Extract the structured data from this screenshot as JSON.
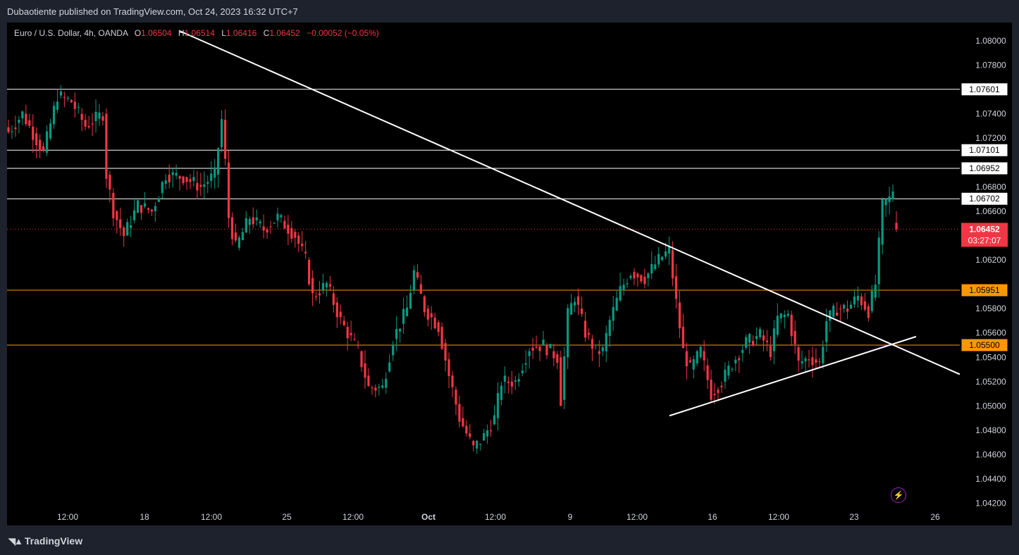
{
  "header": {
    "published": "Dubaotiente published on TradingView.com, Oct 24, 2023 16:32 UTC+7"
  },
  "legend": {
    "symbol": "Euro / U.S. Dollar, 4h, OANDA",
    "o_label": "O",
    "o": "1.06504",
    "h_label": "H",
    "h": "1.06514",
    "l_label": "L",
    "l": "1.06416",
    "c_label": "C",
    "c": "1.06452",
    "change": "−0.00052 (−0.05%)"
  },
  "footer": {
    "brand": "TradingView"
  },
  "icons": {
    "brand": "tradingview-logo-icon",
    "alert": "lightning-icon"
  },
  "colors": {
    "up": "#089981",
    "down": "#f23645",
    "resistance": "#ffffff",
    "support": "#ff9800",
    "background": "#000000",
    "axis_text": "#d1d4dc"
  },
  "chart_data": {
    "type": "candlestick",
    "title": "Euro / U.S. Dollar, 4h, OANDA",
    "y_ticks": [
      "1.08000",
      "1.07800",
      "1.07400",
      "1.07200",
      "1.06800",
      "1.06600",
      "1.06200",
      "1.05800",
      "1.05600",
      "1.05400",
      "1.05200",
      "1.05000",
      "1.04800",
      "1.04600",
      "1.04400",
      "1.04200"
    ],
    "x_ticks": [
      "12:00",
      "18",
      "12:00",
      "25",
      "12:00",
      "Oct",
      "12:00",
      "9",
      "12:00",
      "16",
      "12:00",
      "23",
      "26"
    ],
    "ylim": [
      1.041,
      1.0808
    ],
    "horizontal_levels": [
      {
        "label": "1.07601",
        "value": 1.07601,
        "color": "#ffffff"
      },
      {
        "label": "1.07101",
        "value": 1.07101,
        "color": "#ffffff"
      },
      {
        "label": "1.06952",
        "value": 1.06952,
        "color": "#ffffff"
      },
      {
        "label": "1.06702",
        "value": 1.06702,
        "color": "#ffffff"
      },
      {
        "label": "1.05951",
        "value": 1.05951,
        "color": "#ff9800"
      },
      {
        "label": "1.05500",
        "value": 1.055,
        "color": "#ff9800"
      }
    ],
    "last_price": {
      "label": "1.06452",
      "value": 1.06452,
      "countdown": "03:27:07"
    },
    "trendlines": [
      {
        "name": "descending",
        "from": {
          "bar": 0.0,
          "price": 1.0808
        },
        "to": {
          "bar": 1.0,
          "price": 1.0526
        }
      },
      {
        "name": "ascending",
        "from": {
          "bar": 0.0,
          "price": 1.0492
        },
        "to": {
          "bar": 1.0,
          "price": 1.0557
        }
      }
    ],
    "anchors": [
      {
        "c": 0,
        "p": 1.0725
      },
      {
        "c": 4,
        "p": 1.074
      },
      {
        "c": 10,
        "p": 1.0708
      },
      {
        "c": 14,
        "p": 1.0755
      },
      {
        "c": 18,
        "p": 1.075
      },
      {
        "c": 22,
        "p": 1.073
      },
      {
        "c": 27,
        "p": 1.074
      },
      {
        "c": 28,
        "p": 1.069
      },
      {
        "c": 30,
        "p": 1.066
      },
      {
        "c": 33,
        "p": 1.064
      },
      {
        "c": 37,
        "p": 1.0665
      },
      {
        "c": 41,
        "p": 1.066
      },
      {
        "c": 45,
        "p": 1.069
      },
      {
        "c": 50,
        "p": 1.0688
      },
      {
        "c": 55,
        "p": 1.068
      },
      {
        "c": 59,
        "p": 1.069
      },
      {
        "c": 61,
        "p": 1.0735
      },
      {
        "c": 62,
        "p": 1.07
      },
      {
        "c": 63,
        "p": 1.0655
      },
      {
        "c": 65,
        "p": 1.063
      },
      {
        "c": 69,
        "p": 1.0655
      },
      {
        "c": 73,
        "p": 1.0645
      },
      {
        "c": 77,
        "p": 1.0655
      },
      {
        "c": 82,
        "p": 1.064
      },
      {
        "c": 85,
        "p": 1.062
      },
      {
        "c": 87,
        "p": 1.059
      },
      {
        "c": 91,
        "p": 1.06
      },
      {
        "c": 95,
        "p": 1.057
      },
      {
        "c": 100,
        "p": 1.0545
      },
      {
        "c": 103,
        "p": 1.0515
      },
      {
        "c": 107,
        "p": 1.0515
      },
      {
        "c": 110,
        "p": 1.0555
      },
      {
        "c": 114,
        "p": 1.058
      },
      {
        "c": 116,
        "p": 1.061
      },
      {
        "c": 119,
        "p": 1.058
      },
      {
        "c": 123,
        "p": 1.0565
      },
      {
        "c": 126,
        "p": 1.0525
      },
      {
        "c": 129,
        "p": 1.049
      },
      {
        "c": 133,
        "p": 1.0465
      },
      {
        "c": 136,
        "p": 1.0475
      },
      {
        "c": 139,
        "p": 1.049
      },
      {
        "c": 141,
        "p": 1.052
      },
      {
        "c": 145,
        "p": 1.052
      },
      {
        "c": 149,
        "p": 1.0548
      },
      {
        "c": 153,
        "p": 1.055
      },
      {
        "c": 157,
        "p": 1.054
      },
      {
        "c": 158,
        "p": 1.0505
      },
      {
        "c": 160,
        "p": 1.0575
      },
      {
        "c": 162,
        "p": 1.059
      },
      {
        "c": 165,
        "p": 1.056
      },
      {
        "c": 168,
        "p": 1.0545
      },
      {
        "c": 170,
        "p": 1.0545
      },
      {
        "c": 172,
        "p": 1.057
      },
      {
        "c": 175,
        "p": 1.0595
      },
      {
        "c": 178,
        "p": 1.061
      },
      {
        "c": 182,
        "p": 1.0605
      },
      {
        "c": 186,
        "p": 1.062
      },
      {
        "c": 189,
        "p": 1.0628
      },
      {
        "c": 191,
        "p": 1.0585
      },
      {
        "c": 193,
        "p": 1.0545
      },
      {
        "c": 195,
        "p": 1.053
      },
      {
        "c": 198,
        "p": 1.0545
      },
      {
        "c": 201,
        "p": 1.051
      },
      {
        "c": 204,
        "p": 1.052
      },
      {
        "c": 207,
        "p": 1.0535
      },
      {
        "c": 211,
        "p": 1.0552
      },
      {
        "c": 215,
        "p": 1.0558
      },
      {
        "c": 218,
        "p": 1.0545
      },
      {
        "c": 220,
        "p": 1.0572
      },
      {
        "c": 223,
        "p": 1.0575
      },
      {
        "c": 226,
        "p": 1.0535
      },
      {
        "c": 229,
        "p": 1.054
      },
      {
        "c": 232,
        "p": 1.0535
      },
      {
        "c": 234,
        "p": 1.057
      },
      {
        "c": 237,
        "p": 1.058
      },
      {
        "c": 240,
        "p": 1.058
      },
      {
        "c": 243,
        "p": 1.059
      },
      {
        "c": 246,
        "p": 1.0578
      },
      {
        "c": 248,
        "p": 1.06
      },
      {
        "c": 250,
        "p": 1.0665
      },
      {
        "c": 252,
        "p": 1.067
      },
      {
        "c": 253,
        "p": 1.0678
      },
      {
        "c": 254,
        "p": 1.0645
      }
    ]
  }
}
